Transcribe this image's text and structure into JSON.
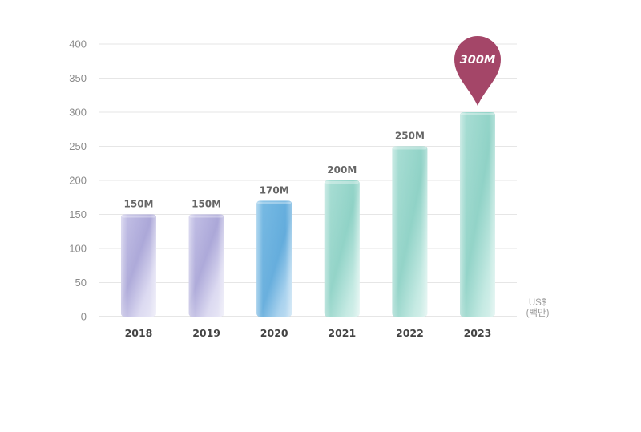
{
  "chart_data": {
    "type": "bar",
    "categories": [
      "2018",
      "2019",
      "2020",
      "2021",
      "2022",
      "2023"
    ],
    "values": [
      150,
      150,
      170,
      200,
      250,
      300
    ],
    "data_labels": [
      "150M",
      "150M",
      "170M",
      "200M",
      "250M",
      "300M"
    ],
    "title": "",
    "xlabel": "",
    "ylabel": "",
    "unit_label": [
      "US$",
      "(백만)"
    ],
    "ylim": [
      0,
      400
    ],
    "yticks": [
      0,
      50,
      100,
      150,
      200,
      250,
      300,
      350,
      400
    ],
    "grid": true,
    "highlight_index": 5,
    "colors": {
      "purple": "#b3b0dc",
      "blue": "#6ab2df",
      "teal": "#96d6cb",
      "pin": "#a44668",
      "grid": "#e6e6e6",
      "axis": "#cccccc"
    },
    "bar_color_keys": [
      "purple",
      "purple",
      "blue",
      "teal",
      "teal",
      "teal"
    ]
  }
}
